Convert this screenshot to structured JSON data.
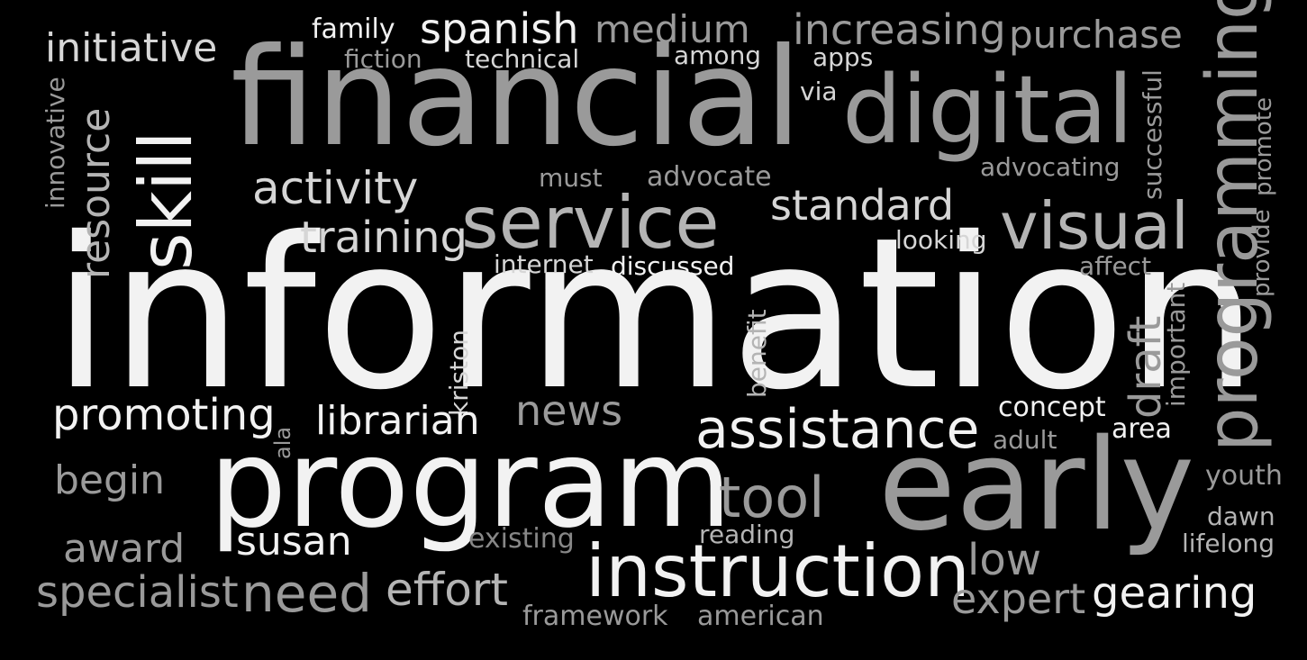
{
  "words": {
    "information": "information",
    "financial": "financial",
    "program": "program",
    "early": "early",
    "digital": "digital",
    "instruction": "instruction",
    "service": "service",
    "programming": "programming",
    "skill": "skill",
    "visual": "visual",
    "assistance": "assistance",
    "spanish": "spanish",
    "medium": "medium",
    "increasing": "increasing",
    "purchase": "purchase",
    "initiative": "initiative",
    "family": "family",
    "fiction": "fiction",
    "technical": "technical",
    "among": "among",
    "apps": "apps",
    "via": "via",
    "innovative": "innovative",
    "resource": "resource",
    "activity": "activity",
    "must": "must",
    "advocate": "advocate",
    "standard": "standard",
    "advocating": "advocating",
    "successful": "successful",
    "promote": "promote",
    "provide": "provide",
    "training": "training",
    "looking": "looking",
    "internet": "internet",
    "discussed": "discussed",
    "affect": "affect",
    "important": "important",
    "draft": "draft",
    "kriston": "kriston",
    "benefit": "benefit",
    "promoting": "promoting",
    "ala": "ala",
    "librarian": "librarian",
    "news": "news",
    "concept": "concept",
    "adult": "adult",
    "area": "area",
    "begin": "begin",
    "youth": "youth",
    "tool": "tool",
    "dawn": "dawn",
    "award": "award",
    "susan": "susan",
    "existing": "existing",
    "reading": "reading",
    "lifelong": "lifelong",
    "low": "low",
    "specialist": "specialist",
    "need": "need",
    "effort": "effort",
    "expert": "expert",
    "gearing": "gearing",
    "framework": "framework",
    "american": "american"
  },
  "colors": {
    "background": "#000000",
    "shades": [
      "#f2f2f2",
      "#d6d6d6",
      "#b4b4b4",
      "#9a9a9a",
      "#878787"
    ]
  }
}
